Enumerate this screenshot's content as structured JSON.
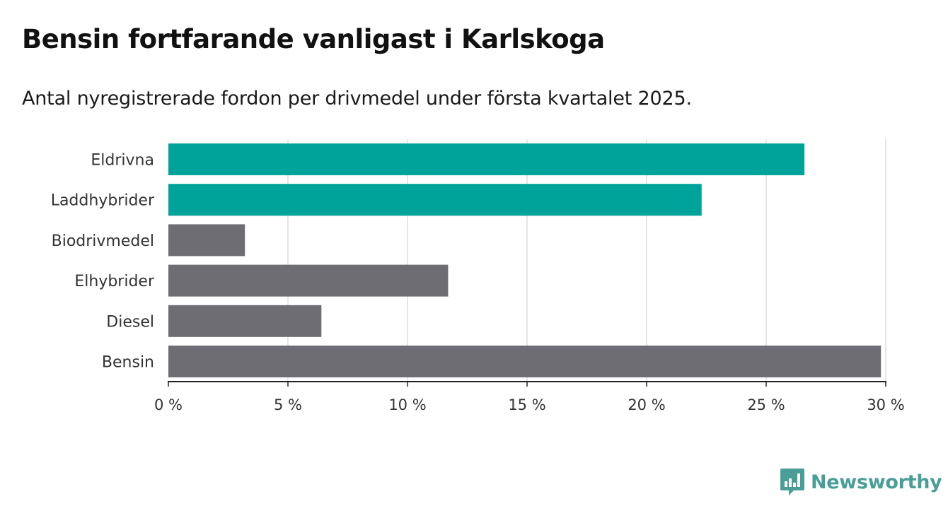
{
  "title": "Bensin fortfarande vanligast i Karlskoga",
  "subtitle": "Antal nyregistrerade fordon per drivmedel under första kvartalet 2025.",
  "brand": {
    "name": "Newsworthy",
    "color": "#4a9e98",
    "icon": "bar-chart-speech-bubble-icon"
  },
  "colors": {
    "highlight": "#00a39a",
    "default": "#6e6d74",
    "grid": "#dddddd",
    "axis": "#222222"
  },
  "chart_data": {
    "type": "bar",
    "orientation": "horizontal",
    "categories": [
      "Eldrivna",
      "Laddhybrider",
      "Biodrivmedel",
      "Elhybrider",
      "Diesel",
      "Bensin"
    ],
    "values": [
      26.6,
      22.3,
      3.2,
      11.7,
      6.4,
      29.8
    ],
    "highlighted": [
      true,
      true,
      false,
      false,
      false,
      false
    ],
    "xlim": [
      0,
      30
    ],
    "xticks": [
      0,
      5,
      10,
      15,
      20,
      25,
      30
    ],
    "xtick_labels": [
      "0 %",
      "5 %",
      "10 %",
      "15 %",
      "20 %",
      "25 %",
      "30 %"
    ],
    "grid": true,
    "xlabel": "",
    "ylabel": ""
  }
}
